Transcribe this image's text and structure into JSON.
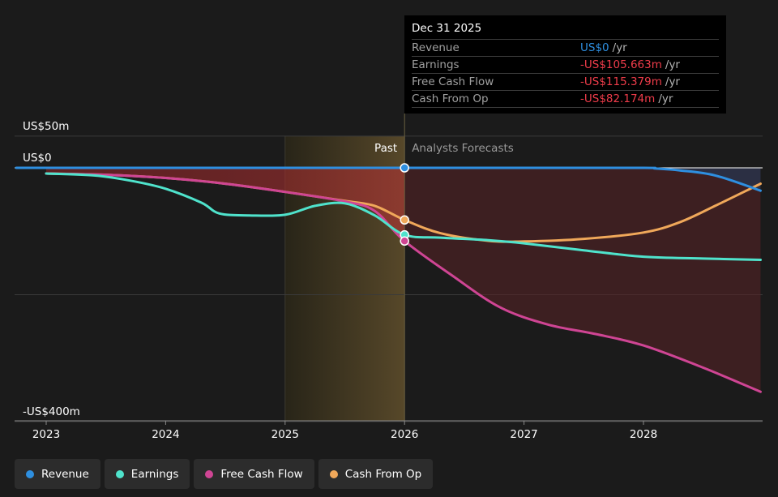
{
  "chart_data": {
    "type": "area",
    "x_ticks": [
      "2023",
      "2024",
      "2025",
      "2026",
      "2027",
      "2028"
    ],
    "y_ticks": [
      {
        "value": 50,
        "label": "US$50m"
      },
      {
        "value": 0,
        "label": "US$0"
      },
      {
        "value": -400,
        "label": "-US$400m"
      }
    ],
    "ylim": [
      -400,
      50
    ],
    "xlim": [
      2022.75,
      2028.98
    ],
    "divider_x": 2026.0,
    "highlight_from": 2025.0,
    "past_label": "Past",
    "forecast_label": "Analysts Forecasts",
    "series": [
      {
        "name": "Revenue",
        "color": "#2e8fe0",
        "points": [
          [
            2022.75,
            0
          ],
          [
            2023.0,
            0
          ],
          [
            2024.0,
            0
          ],
          [
            2025.0,
            0
          ],
          [
            2026.0,
            0
          ],
          [
            2027.0,
            0
          ],
          [
            2028.0,
            0
          ],
          [
            2028.1,
            -1
          ],
          [
            2028.3,
            -4
          ],
          [
            2028.6,
            -12
          ],
          [
            2028.98,
            -36
          ]
        ]
      },
      {
        "name": "Earnings",
        "color": "#4fe3cc",
        "points": [
          [
            2023.0,
            -9
          ],
          [
            2023.4,
            -12
          ],
          [
            2023.7,
            -20
          ],
          [
            2024.0,
            -33
          ],
          [
            2024.3,
            -55
          ],
          [
            2024.45,
            -72
          ],
          [
            2024.7,
            -75
          ],
          [
            2025.0,
            -74
          ],
          [
            2025.25,
            -60
          ],
          [
            2025.5,
            -56
          ],
          [
            2025.75,
            -75
          ],
          [
            2026.0,
            -105.663
          ],
          [
            2026.3,
            -110
          ],
          [
            2026.7,
            -114
          ],
          [
            2027.0,
            -119
          ],
          [
            2027.5,
            -130
          ],
          [
            2028.0,
            -140
          ],
          [
            2028.5,
            -143
          ],
          [
            2028.98,
            -145
          ]
        ]
      },
      {
        "name": "Free Cash Flow",
        "color": "#cf4594",
        "points": [
          [
            2023.0,
            -9
          ],
          [
            2023.5,
            -11
          ],
          [
            2024.0,
            -16
          ],
          [
            2024.5,
            -25
          ],
          [
            2025.0,
            -38
          ],
          [
            2025.5,
            -53
          ],
          [
            2025.75,
            -68
          ],
          [
            2026.0,
            -115.379
          ],
          [
            2026.4,
            -170
          ],
          [
            2026.8,
            -220
          ],
          [
            2027.2,
            -247
          ],
          [
            2027.6,
            -262
          ],
          [
            2028.0,
            -280
          ],
          [
            2028.5,
            -315
          ],
          [
            2028.98,
            -353
          ]
        ]
      },
      {
        "name": "Cash From Op",
        "color": "#f0a85a",
        "points": [
          [
            2023.0,
            -9
          ],
          [
            2023.5,
            -11
          ],
          [
            2024.0,
            -16
          ],
          [
            2024.5,
            -25
          ],
          [
            2025.0,
            -38
          ],
          [
            2025.5,
            -52
          ],
          [
            2025.75,
            -60
          ],
          [
            2026.0,
            -82.174
          ],
          [
            2026.3,
            -103
          ],
          [
            2026.7,
            -115
          ],
          [
            2027.0,
            -116
          ],
          [
            2027.5,
            -112
          ],
          [
            2028.0,
            -102
          ],
          [
            2028.3,
            -86
          ],
          [
            2028.6,
            -60
          ],
          [
            2028.98,
            -25
          ]
        ]
      }
    ]
  },
  "tooltip": {
    "date": "Dec 31 2025",
    "rows": [
      {
        "label": "Revenue",
        "value": "US$0",
        "unit": "/yr",
        "color": "#2e8fe0"
      },
      {
        "label": "Earnings",
        "value": "-US$105.663m",
        "unit": "/yr",
        "color": "#ef3c4a"
      },
      {
        "label": "Free Cash Flow",
        "value": "-US$115.379m",
        "unit": "/yr",
        "color": "#ef3c4a"
      },
      {
        "label": "Cash From Op",
        "value": "-US$82.174m",
        "unit": "/yr",
        "color": "#ef3c4a"
      }
    ]
  },
  "legend": [
    {
      "label": "Revenue",
      "color": "#2e8fe0"
    },
    {
      "label": "Earnings",
      "color": "#4fe3cc"
    },
    {
      "label": "Free Cash Flow",
      "color": "#cf4594"
    },
    {
      "label": "Cash From Op",
      "color": "#f0a85a"
    }
  ]
}
